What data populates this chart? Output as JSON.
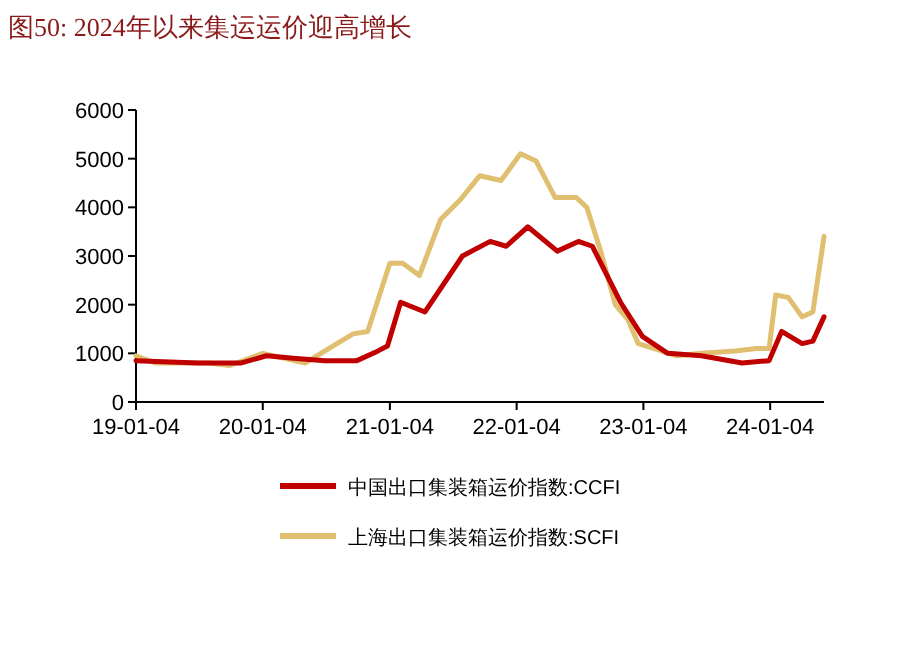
{
  "chart_data": {
    "type": "line",
    "title": "图50:   2024年以来集运运价迎高增长",
    "xlim": [
      "2019-01-04",
      "2024-06-07"
    ],
    "ylim": [
      0,
      6000
    ],
    "xticks": [
      {
        "value": "2019-01-04",
        "label": "19-01-04"
      },
      {
        "value": "2020-01-04",
        "label": "20-01-04"
      },
      {
        "value": "2021-01-04",
        "label": "21-01-04"
      },
      {
        "value": "2022-01-04",
        "label": "22-01-04"
      },
      {
        "value": "2023-01-04",
        "label": "23-01-04"
      },
      {
        "value": "2024-01-04",
        "label": "24-01-04"
      }
    ],
    "yticks": [
      0,
      1000,
      2000,
      3000,
      4000,
      5000,
      6000
    ],
    "grid": false,
    "legend": "bottom",
    "line_style": "solid",
    "series": [
      {
        "name": "中国出口集装箱运价指数:CCFI",
        "color": "#c00000",
        "x": [
          "2019-01-04",
          "2019-07-01",
          "2019-11-01",
          "2020-01-15",
          "2020-04-01",
          "2020-07-01",
          "2020-10-01",
          "2020-12-01",
          "2020-12-28",
          "2021-02-04",
          "2021-04-15",
          "2021-08-01",
          "2021-10-20",
          "2021-12-05",
          "2022-02-05",
          "2022-05-01",
          "2022-07-01",
          "2022-08-10",
          "2022-10-30",
          "2023-01-01",
          "2023-03-15",
          "2023-06-20",
          "2023-10-15",
          "2024-01-01",
          "2024-02-06",
          "2024-04-05",
          "2024-05-06",
          "2024-06-07"
        ],
        "values": [
          850,
          800,
          800,
          950,
          900,
          850,
          850,
          1050,
          1150,
          2050,
          1850,
          3000,
          3300,
          3200,
          3600,
          3100,
          3300,
          3200,
          2050,
          1350,
          1000,
          950,
          800,
          850,
          1450,
          1200,
          1250,
          1750
        ]
      },
      {
        "name": "上海出口集装箱运价指数:SCFI",
        "color": "#e0c070",
        "x": [
          "2019-01-04",
          "2019-03-01",
          "2019-08-01",
          "2019-10-01",
          "2020-01-04",
          "2020-05-05",
          "2020-07-01",
          "2020-09-20",
          "2020-11-01",
          "2021-01-04",
          "2021-02-10",
          "2021-03-30",
          "2021-05-30",
          "2021-07-25",
          "2021-09-20",
          "2021-11-20",
          "2022-01-15",
          "2022-03-01",
          "2022-04-25",
          "2022-06-25",
          "2022-07-25",
          "2022-09-05",
          "2022-10-15",
          "2022-11-20",
          "2022-12-20",
          "2023-02-25",
          "2023-04-10",
          "2023-06-20",
          "2023-09-25",
          "2023-11-25",
          "2024-01-01",
          "2024-01-20",
          "2024-02-25",
          "2024-04-05",
          "2024-05-06",
          "2024-06-07"
        ],
        "values": [
          950,
          800,
          800,
          750,
          1000,
          800,
          1050,
          1400,
          1450,
          2850,
          2850,
          2600,
          3750,
          4150,
          4650,
          4550,
          5100,
          4950,
          4200,
          4200,
          4000,
          3050,
          2000,
          1700,
          1200,
          1050,
          950,
          1000,
          1050,
          1100,
          1100,
          2200,
          2150,
          1750,
          1850,
          3400
        ]
      }
    ]
  }
}
